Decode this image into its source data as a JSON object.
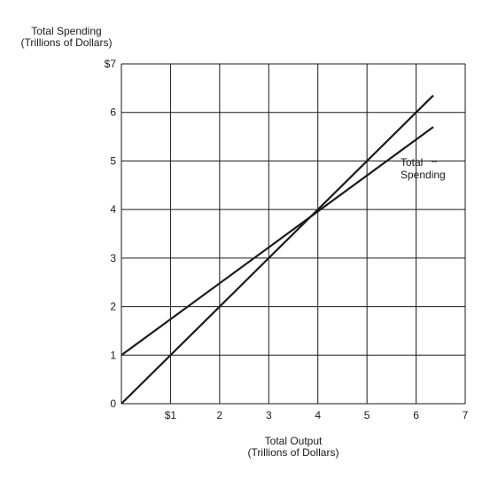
{
  "chart_data": {
    "type": "line",
    "ylabel": [
      "Total Spending",
      "(Trillions of Dollars)"
    ],
    "xlabel": [
      "Total Output",
      "(Trillions of Dollars)"
    ],
    "xlim": [
      0,
      7
    ],
    "ylim": [
      0,
      7
    ],
    "x_ticks": [
      "",
      "$1",
      "2",
      "3",
      "4",
      "5",
      "6",
      "7"
    ],
    "y_ticks": [
      "0",
      "1",
      "2",
      "3",
      "4",
      "5",
      "6",
      "$7"
    ],
    "grid": true,
    "series": [
      {
        "name": "Total Spending",
        "label_lines": [
          "Total",
          "Spending"
        ],
        "x": [
          0,
          6.35
        ],
        "y": [
          1,
          5.7
        ]
      },
      {
        "name": "",
        "x": [
          0,
          6.35
        ],
        "y": [
          0,
          6.35
        ]
      }
    ],
    "colors": {
      "line": "#1a1a1a",
      "grid": "#1a1a1a"
    }
  }
}
